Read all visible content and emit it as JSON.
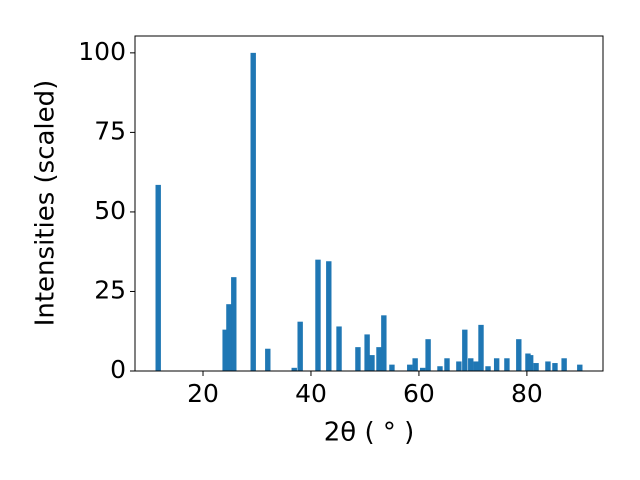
{
  "chart_data": {
    "type": "bar",
    "xlabel": "2θ ( ° )",
    "ylabel": "Intensities (scaled)",
    "x": [
      11.7,
      24.1,
      24.8,
      25.7,
      29.3,
      32.0,
      36.9,
      38.0,
      41.3,
      43.3,
      45.2,
      48.7,
      50.4,
      51.3,
      52.6,
      53.5,
      55.0,
      58.3,
      59.3,
      60.7,
      61.7,
      63.9,
      65.2,
      67.4,
      68.5,
      69.6,
      70.6,
      71.5,
      72.8,
      74.4,
      76.3,
      78.5,
      80.2,
      80.7,
      81.7,
      83.9,
      85.2,
      86.9,
      89.8
    ],
    "values": [
      58.5,
      13,
      21,
      29.5,
      100,
      7,
      1,
      15.5,
      35,
      34.5,
      14,
      7.5,
      11.5,
      5,
      7.5,
      17.5,
      2,
      2,
      4,
      1,
      10,
      1.5,
      4,
      3,
      13,
      4,
      3,
      14.5,
      1.5,
      4,
      4,
      10,
      5.5,
      5,
      2.5,
      3,
      2.5,
      4,
      2
    ],
    "color": "#1f77b4",
    "xlim": [
      7.4,
      94.1
    ],
    "xticks": [
      20,
      40,
      60,
      80
    ],
    "ylim": [
      0,
      105.3
    ],
    "yticks": [
      0,
      25,
      50,
      75,
      100
    ],
    "grid": false
  }
}
